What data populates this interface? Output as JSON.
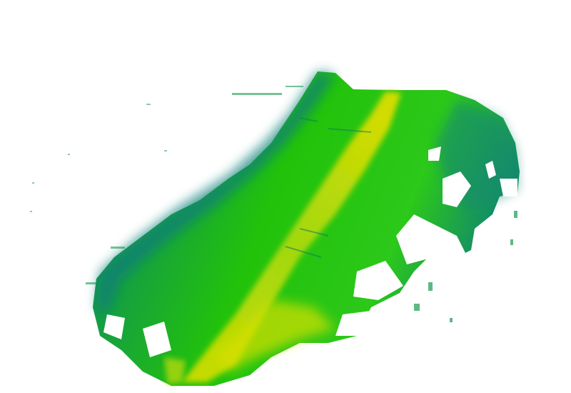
{
  "colors": {
    "background": "#ffffff",
    "edge_teal": "#0f7f78",
    "body_green": "#22c20a",
    "bright_green": "#3ad80a",
    "streak_yellow": "#d6e20a",
    "hot_yellow": "#f0e000"
  }
}
